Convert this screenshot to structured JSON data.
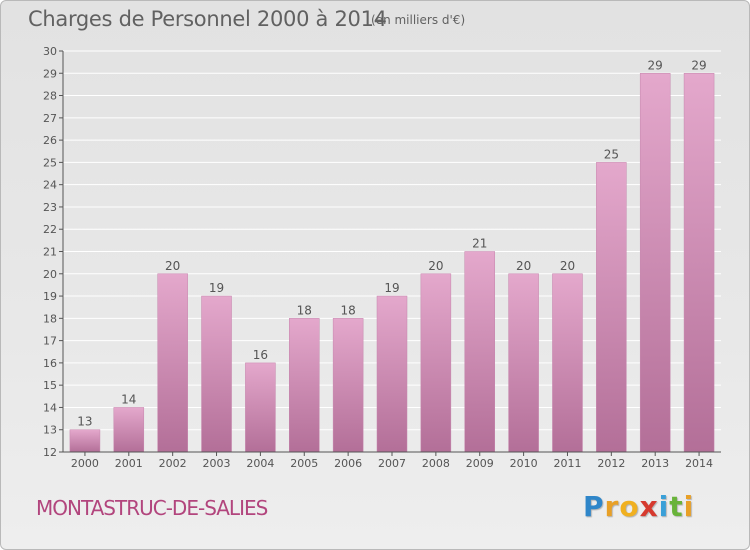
{
  "title": "Charges de Personnel 2000 à 2014",
  "subtitle": "(en milliers d'€)",
  "footer": {
    "commune": "MONTASTRUC-DE-SALIES",
    "logo_letters": [
      "P",
      "r",
      "o",
      "x",
      "i",
      "t",
      "i"
    ],
    "logo_colors": [
      "#2f86c9",
      "#e8a027",
      "#f0b020",
      "#d63a2f",
      "#3aa0d8",
      "#69b33a",
      "#e8a027"
    ]
  },
  "colors": {
    "bar_top": "#e4a8cc",
    "bar_bottom": "#b36f98",
    "bar_edge": "#c686ad",
    "axis": "#555555",
    "text": "#555555",
    "grid": "#ffffff"
  },
  "chart_data": {
    "type": "bar",
    "title": "Charges de Personnel 2000 à 2014",
    "subtitle": "(en milliers d'€)",
    "categories": [
      "2000",
      "2001",
      "2002",
      "2003",
      "2004",
      "2005",
      "2006",
      "2007",
      "2008",
      "2009",
      "2010",
      "2011",
      "2012",
      "2013",
      "2014"
    ],
    "values": [
      13,
      14,
      20,
      19,
      16,
      18,
      18,
      19,
      20,
      21,
      20,
      20,
      25,
      29,
      29
    ],
    "ylim": [
      12,
      30
    ],
    "yticks": [
      12,
      13,
      14,
      15,
      16,
      17,
      18,
      19,
      20,
      21,
      22,
      23,
      24,
      25,
      26,
      27,
      28,
      29,
      30
    ],
    "xlabel": "",
    "ylabel": "",
    "grid": true,
    "data_labels": true
  }
}
